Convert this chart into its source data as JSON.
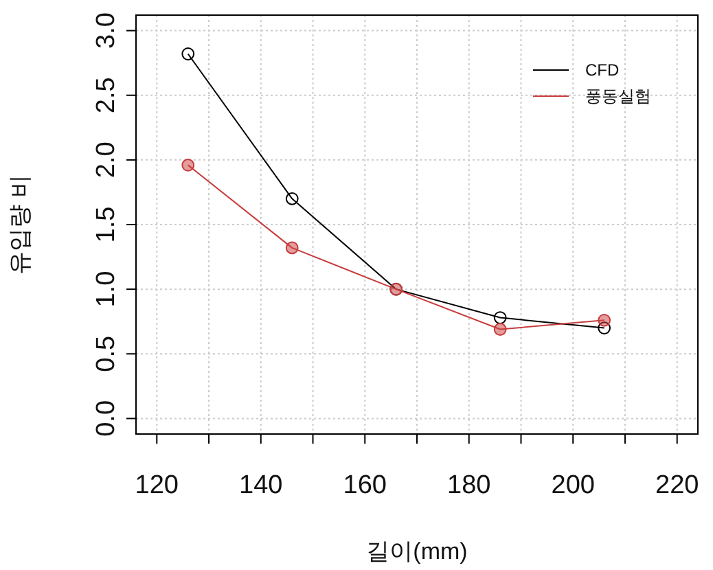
{
  "chart_data": {
    "type": "line",
    "xlabel": "길이(mm)",
    "ylabel": "유입량 비",
    "x": [
      126,
      146,
      166,
      186,
      206
    ],
    "series": [
      {
        "name": "CFD",
        "color": "#000000",
        "values": [
          2.82,
          1.7,
          1.0,
          0.78,
          0.7
        ]
      },
      {
        "name": "풍동실험",
        "color": "#c83c3c",
        "values": [
          1.96,
          1.32,
          1.0,
          0.69,
          0.76
        ]
      }
    ],
    "xlim": [
      116,
      224
    ],
    "xticks": [
      120,
      {
        "value": 130,
        "label": null
      },
      140,
      {
        "value": 150,
        "label": null
      },
      160,
      {
        "value": 170,
        "label": null
      },
      180,
      {
        "value": 190,
        "label": null
      },
      200,
      {
        "value": 210,
        "label": null
      },
      220
    ],
    "ylim": [
      -0.12,
      3.12
    ],
    "yticks": [
      {
        "value": 0,
        "label": "0.0"
      },
      0.5,
      {
        "value": 1,
        "label": "1.0"
      },
      1.5,
      {
        "value": 2,
        "label": "2.0"
      },
      2.5,
      {
        "value": 3,
        "label": "3.0"
      }
    ],
    "grid": true,
    "legend": "top right",
    "marker": "circle",
    "line_style": "solid"
  }
}
